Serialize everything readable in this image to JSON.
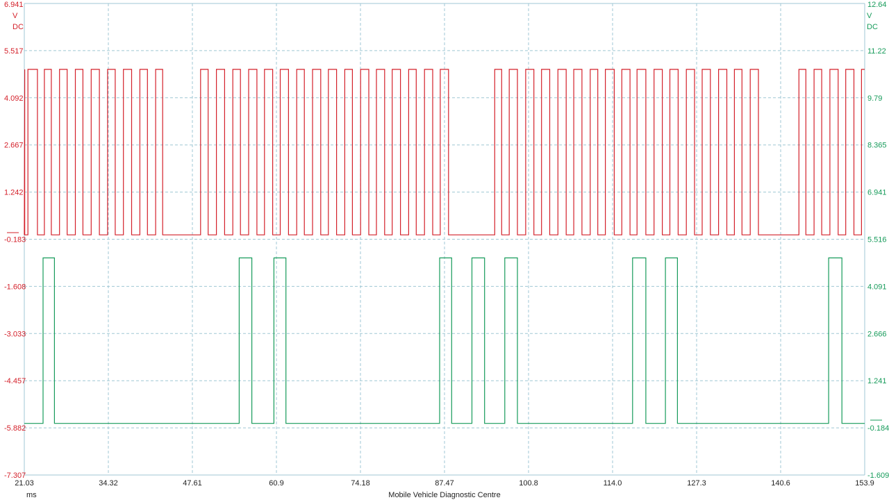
{
  "colors": {
    "channel_a": "#d4202a",
    "channel_b": "#169b5a",
    "grid": "#9fc7d4",
    "axis_text": "#222222"
  },
  "channel_a": {
    "unit": "V",
    "coupling": "DC"
  },
  "channel_b": {
    "unit": "V",
    "coupling": "DC"
  },
  "footer": {
    "x_unit": "ms",
    "caption": "Mobile Vehicle Diagnostic Centre"
  },
  "chart_data": {
    "type": "line",
    "grid": true,
    "xlabel": "ms",
    "x_ticks": [
      "21.03",
      "34.32",
      "47.61",
      "60.9",
      "74.18",
      "87.47",
      "100.8",
      "114.0",
      "127.3",
      "140.6",
      "153.9"
    ],
    "xlim": [
      21.03,
      153.9
    ],
    "left_axis": {
      "ticks": [
        "6.941",
        "5.517",
        "4.092",
        "2.667",
        "1.242",
        "-0.183",
        "-1.608",
        "-3.033",
        "-4.457",
        "-5.882",
        "-7.307"
      ],
      "ylim": [
        -7.307,
        6.941
      ],
      "unit": "V",
      "coupling": "DC"
    },
    "right_axis": {
      "ticks": [
        "12.64",
        "11.22",
        "9.79",
        "8.365",
        "6.941",
        "5.516",
        "4.091",
        "2.666",
        "1.241",
        "-0.184",
        "-1.609"
      ],
      "ylim": [
        -1.609,
        12.64
      ],
      "unit": "V",
      "coupling": "DC"
    },
    "series": [
      {
        "axis": "left",
        "color": "#d4202a",
        "low_level": -0.05,
        "high_level": 4.95,
        "low_intervals": [
          [
            21.1,
            21.6
          ],
          [
            23.1,
            24.2
          ],
          [
            25.3,
            26.6
          ],
          [
            27.8,
            29.1
          ],
          [
            30.3,
            31.6
          ],
          [
            32.9,
            34.2
          ],
          [
            35.4,
            36.7
          ],
          [
            38.0,
            39.3
          ],
          [
            40.5,
            41.8
          ],
          [
            42.9,
            48.9
          ],
          [
            50.1,
            51.4
          ],
          [
            52.7,
            54.0
          ],
          [
            55.2,
            56.5
          ],
          [
            57.8,
            59.0
          ],
          [
            60.3,
            61.5
          ],
          [
            62.8,
            64.1
          ],
          [
            65.3,
            66.6
          ],
          [
            67.9,
            69.1
          ],
          [
            70.4,
            71.7
          ],
          [
            72.9,
            74.2
          ],
          [
            75.5,
            76.7
          ],
          [
            78.0,
            79.2
          ],
          [
            80.5,
            81.8
          ],
          [
            83.0,
            84.3
          ],
          [
            85.6,
            86.8
          ],
          [
            88.1,
            95.4
          ],
          [
            96.5,
            97.7
          ],
          [
            99.0,
            100.3
          ],
          [
            101.6,
            102.8
          ],
          [
            104.1,
            105.4
          ],
          [
            106.7,
            107.9
          ],
          [
            109.2,
            110.5
          ],
          [
            111.7,
            112.9
          ],
          [
            114.3,
            115.5
          ],
          [
            116.8,
            117.9
          ],
          [
            119.3,
            120.6
          ],
          [
            121.9,
            123.1
          ],
          [
            124.4,
            125.7
          ],
          [
            127.0,
            128.2
          ],
          [
            129.5,
            130.8
          ],
          [
            132.1,
            133.3
          ],
          [
            134.5,
            135.8
          ],
          [
            137.1,
            143.5
          ],
          [
            144.6,
            145.9
          ],
          [
            147.1,
            148.4
          ],
          [
            149.7,
            150.9
          ],
          [
            152.2,
            153.4
          ]
        ]
      },
      {
        "axis": "right",
        "color": "#169b5a",
        "low_level": -0.05,
        "high_level": 4.95,
        "high_intervals": [
          [
            24.0,
            25.8
          ],
          [
            55.0,
            57.0
          ],
          [
            60.5,
            62.4
          ],
          [
            86.7,
            88.6
          ],
          [
            91.8,
            93.8
          ],
          [
            97.0,
            99.0
          ],
          [
            117.2,
            119.3
          ],
          [
            122.4,
            124.3
          ],
          [
            148.2,
            150.3
          ]
        ]
      }
    ]
  }
}
